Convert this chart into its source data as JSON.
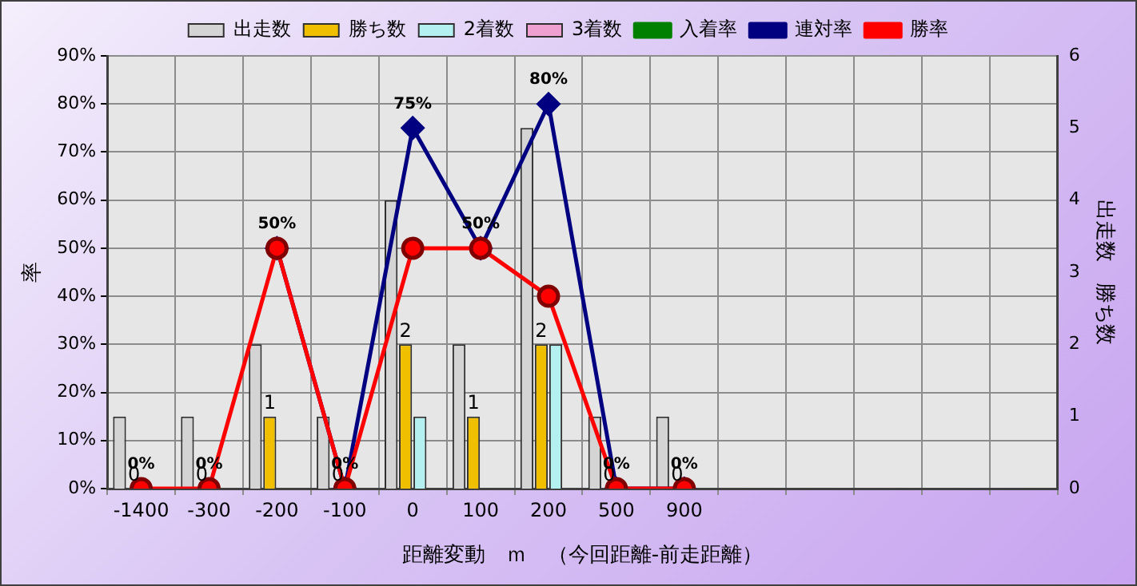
{
  "chart_data": {
    "type": "bar",
    "xlabel": "距離変動　ｍ　（今回距離-前走距離）",
    "ylabel": "率",
    "y2label": "出走数　勝ち数",
    "categories": [
      "-1400",
      "-300",
      "-200",
      "-100",
      "0",
      "100",
      "200",
      "500",
      "900",
      null,
      null,
      null,
      null,
      null
    ],
    "series": [
      {
        "name": "出走数",
        "type": "bar",
        "axis": "y2",
        "color": "#d4d4d4",
        "values": [
          1,
          1,
          2,
          1,
          4,
          2,
          5,
          1,
          1,
          null,
          null,
          null,
          null,
          null
        ]
      },
      {
        "name": "勝ち数",
        "type": "bar",
        "axis": "y2",
        "color": "#f0c000",
        "values": [
          0,
          0,
          1,
          0,
          2,
          1,
          2,
          0,
          0,
          null,
          null,
          null,
          null,
          null
        ],
        "value_labels": [
          "0",
          "0",
          "1",
          "0",
          "2",
          "1",
          "2",
          "0",
          "0",
          null,
          null,
          null,
          null,
          null
        ]
      },
      {
        "name": "2着数",
        "type": "bar",
        "axis": "y2",
        "color": "#b4f0f0",
        "values": [
          0,
          0,
          0,
          0,
          1,
          0,
          2,
          0,
          0,
          null,
          null,
          null,
          null,
          null
        ]
      },
      {
        "name": "3着数",
        "type": "bar",
        "axis": "y2",
        "color": "#f0a0d0",
        "values": [
          0,
          0,
          0,
          0,
          0,
          0,
          0,
          0,
          0,
          null,
          null,
          null,
          null,
          null
        ]
      },
      {
        "name": "入着率",
        "type": "line",
        "color": "#008000",
        "marker": "triangle",
        "values": [
          null,
          null,
          null,
          null,
          null,
          null,
          null,
          null,
          null,
          null,
          null,
          null,
          null,
          null
        ]
      },
      {
        "name": "連対率",
        "type": "line",
        "color": "#000080",
        "marker": "diamond",
        "values": [
          null,
          null,
          50,
          0,
          75,
          50,
          80,
          0,
          0,
          null,
          null,
          null,
          null,
          null
        ],
        "value_labels": [
          null,
          null,
          "50%",
          "0%",
          "75%",
          "50%",
          "80%",
          "0%",
          "0%",
          null,
          null,
          null,
          null,
          null
        ]
      },
      {
        "name": "勝率",
        "type": "line",
        "color": "#ff0000",
        "marker": "circle",
        "values": [
          0,
          0,
          50,
          0,
          50,
          50,
          40,
          0,
          0,
          null,
          null,
          null,
          null,
          null
        ],
        "value_labels": [
          "0%",
          "0%",
          null,
          null,
          null,
          null,
          null,
          null,
          null,
          null,
          null,
          null,
          null,
          null
        ]
      }
    ],
    "ylim": [
      0,
      90
    ],
    "yticks": [
      {
        "value": 0,
        "label": "0%"
      },
      {
        "value": 10,
        "label": "10%"
      },
      {
        "value": 20,
        "label": "20%"
      },
      {
        "value": 30,
        "label": "30%"
      },
      {
        "value": 40,
        "label": "40%"
      },
      {
        "value": 50,
        "label": "50%"
      },
      {
        "value": 60,
        "label": "60%"
      },
      {
        "value": 70,
        "label": "70%"
      },
      {
        "value": 80,
        "label": "80%"
      },
      {
        "value": 90,
        "label": "90%"
      }
    ],
    "y2lim": [
      0,
      6
    ],
    "y2ticks": [
      0,
      1,
      2,
      3,
      4,
      5,
      6
    ],
    "grid": true,
    "legend": "top"
  }
}
